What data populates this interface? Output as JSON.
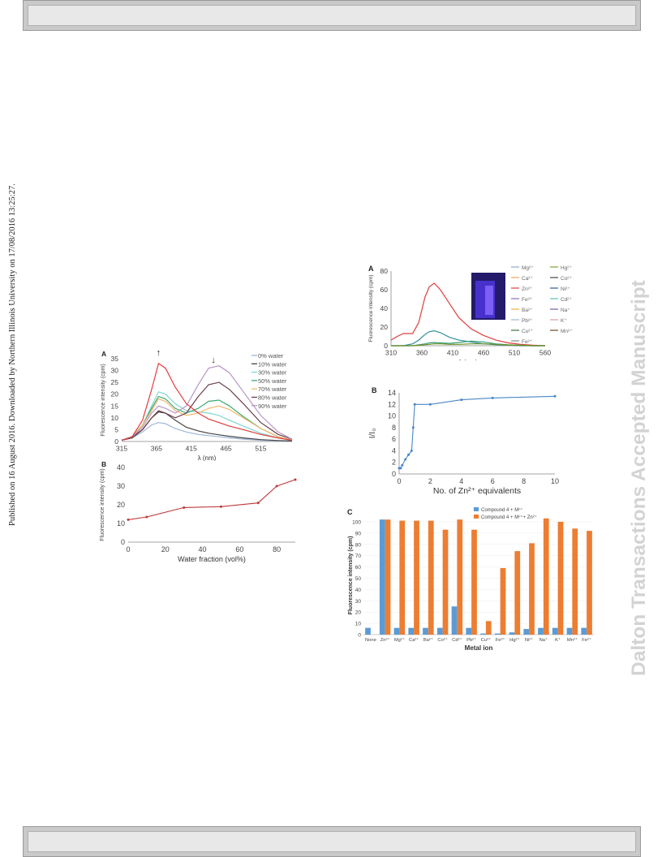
{
  "page": {
    "side_note": "Published on 16 August 2016. Downloaded by Northern Illinois University on 17/08/2016 13:25:27.",
    "watermark": "Dalton Transactions Accepted Manuscript"
  },
  "chart_data": [
    {
      "panel": "A",
      "type": "line",
      "xlabel": "λ (nm)",
      "ylabel": "Fluorescence intensity (cpm)",
      "xticks": [
        "315",
        "365",
        "415",
        "465",
        "515"
      ],
      "xlim": [
        315,
        560
      ],
      "ylim": [
        0,
        35
      ],
      "yticks": [
        "0",
        "5",
        "10",
        "15",
        "20",
        "25",
        "30",
        "35"
      ],
      "annotations": [
        "↑",
        "↓"
      ],
      "x": [
        315,
        330,
        345,
        358,
        368,
        378,
        392,
        408,
        425,
        440,
        455,
        470,
        490,
        515,
        540,
        560
      ],
      "series": [
        {
          "name": "0% water",
          "color": "#9db6d6",
          "values": [
            0.5,
            1.5,
            4,
            7,
            8,
            7.5,
            5.5,
            4,
            3,
            2.5,
            2,
            1.5,
            1,
            0.5,
            0.3,
            0.2
          ]
        },
        {
          "name": "10% water",
          "color": "#444444",
          "values": [
            0.5,
            1.5,
            5,
            10,
            12.5,
            12,
            9,
            6,
            4.5,
            3.5,
            2.8,
            2.2,
            1.5,
            0.8,
            0.4,
            0.2
          ]
        },
        {
          "name": "30% water",
          "color": "#7fd6d1",
          "values": [
            0.5,
            2,
            7,
            15,
            21,
            20,
            16,
            13,
            12.5,
            12,
            11,
            9,
            6.5,
            3.5,
            1.5,
            0.5
          ]
        },
        {
          "name": "50% water",
          "color": "#3fa86f",
          "values": [
            0.5,
            2,
            7,
            14,
            19,
            18,
            14,
            12,
            14,
            17,
            17.5,
            15,
            10.5,
            5.5,
            2,
            0.5
          ]
        },
        {
          "name": "70% water",
          "color": "#f2b96e",
          "values": [
            0.5,
            2,
            7,
            13,
            18,
            17,
            13,
            11,
            12,
            14,
            15,
            13.5,
            10,
            5.5,
            2,
            0.5
          ]
        },
        {
          "name": "80% water",
          "color": "#6a3d4a",
          "values": [
            0.5,
            2,
            5,
            10,
            13,
            12,
            10,
            12,
            19,
            24,
            25,
            22,
            16,
            8,
            3,
            1
          ]
        },
        {
          "name": "90% water",
          "color": "#b896c8",
          "values": [
            0.5,
            2,
            6,
            12,
            15,
            14,
            12,
            15,
            24,
            31,
            32,
            29,
            21,
            11,
            4,
            1
          ]
        },
        {
          "name": "",
          "color": "#e03c3c",
          "values": [
            0.5,
            2,
            9,
            22,
            33,
            31,
            23,
            16,
            12,
            9.5,
            8,
            6.5,
            5,
            3,
            1.5,
            0.5
          ]
        }
      ]
    },
    {
      "panel": "B",
      "type": "line",
      "xlabel": "Water fraction (vol%)",
      "ylabel": "Fluorescence intensity (cpm)",
      "xticks": [
        "0",
        "20",
        "40",
        "60",
        "80"
      ],
      "yticks": [
        "0",
        "10",
        "20",
        "30",
        "40"
      ],
      "xlim": [
        0,
        90
      ],
      "ylim": [
        0,
        40
      ],
      "series": [
        {
          "name": "",
          "color": "#c0393b",
          "x": [
            0,
            10,
            30,
            50,
            70,
            80,
            90
          ],
          "values": [
            12,
            13.5,
            18.5,
            19,
            21,
            30,
            33.5
          ]
        }
      ]
    },
    {
      "panel": "A",
      "type": "line",
      "xlabel": "λ (nm)",
      "ylabel": "Fluorescence intensity (cpm)",
      "xticks": [
        "310",
        "360",
        "410",
        "460",
        "510",
        "560"
      ],
      "yticks": [
        "0",
        "20",
        "40",
        "60",
        "80"
      ],
      "xlim": [
        310,
        560
      ],
      "ylim": [
        0,
        80
      ],
      "legend": [
        "Mg²⁺",
        "Hg²⁺",
        "Ca²⁺",
        "Co²⁺",
        "Zn²⁺",
        "Ni²⁺",
        "Fe³⁺",
        "Cd²⁺",
        "Ba²⁺",
        "Na⁺",
        "Pb²⁺",
        "K⁺",
        "Cu²⁺",
        "Mn²⁺",
        "Fe²⁺"
      ],
      "legend_colors": [
        "#8fa9c8",
        "#7aa337",
        "#f0a35e",
        "#444444",
        "#e03c3c",
        "#2e5e8c",
        "#8e6fb0",
        "#5fbfb8",
        "#e7b12f",
        "#7a5aa0",
        "#9db6d6",
        "#d4a0a0",
        "#3c6f3c",
        "#6b4a2a",
        "#888888"
      ],
      "x": [
        310,
        320,
        330,
        345,
        355,
        365,
        372,
        380,
        390,
        405,
        420,
        440,
        460,
        480,
        500,
        520,
        540,
        560
      ],
      "series": [
        {
          "name": "Zn²⁺",
          "color": "#e03c3c",
          "values": [
            6,
            10,
            13,
            13,
            25,
            52,
            63,
            67,
            60,
            45,
            30,
            18,
            11,
            6,
            3,
            1.5,
            0.5,
            0
          ]
        },
        {
          "name": "",
          "color": "#2f8f9d",
          "values": [
            0,
            0,
            0,
            2,
            6,
            12,
            15,
            16,
            14,
            9,
            6,
            4,
            2,
            1,
            0.5,
            0,
            0,
            0
          ]
        },
        {
          "name": "",
          "color": "#3aa07a",
          "values": [
            0,
            0,
            0,
            0,
            1,
            2,
            3,
            3.5,
            3,
            2.5,
            3.5,
            5,
            4,
            2,
            1,
            0.5,
            0,
            0
          ]
        },
        {
          "name": "",
          "color": "#6b8e23",
          "values": [
            0,
            0,
            0,
            0,
            0.5,
            1,
            1.5,
            2,
            2,
            1.5,
            1.5,
            2,
            2,
            1.5,
            0.8,
            0.3,
            0,
            0
          ]
        }
      ]
    },
    {
      "panel": "B",
      "type": "line",
      "xlabel": "No. of Zn²⁺ equivalents",
      "ylabel": "I/I₀",
      "xticks": [
        "0",
        "2",
        "4",
        "6",
        "8",
        "10"
      ],
      "yticks": [
        "0",
        "2",
        "4",
        "6",
        "8",
        "10",
        "12",
        "14"
      ],
      "xlim": [
        0,
        10
      ],
      "ylim": [
        0,
        14
      ],
      "series": [
        {
          "name": "",
          "color": "#4a86c5",
          "x": [
            0,
            0.1,
            0.2,
            0.4,
            0.6,
            0.8,
            0.9,
            1.0,
            2,
            4,
            6,
            10
          ],
          "values": [
            1,
            1,
            1.5,
            2.5,
            3.3,
            4,
            8,
            12,
            12,
            12.8,
            13.1,
            13.4
          ]
        }
      ]
    },
    {
      "panel": "C",
      "type": "bar",
      "xlabel": "Metal ion",
      "ylabel": "Fluorescence intensity (cpm)",
      "yticks": [
        "0",
        "10",
        "20",
        "30",
        "40",
        "50",
        "60",
        "70",
        "80",
        "90",
        "100"
      ],
      "ylim": [
        0,
        105
      ],
      "categories": [
        "None",
        "Zn²⁺",
        "Mg²⁺",
        "Ca²⁺",
        "Ba²⁺",
        "Co²⁺",
        "Cd²⁺",
        "Pb²⁺",
        "Cu²⁺",
        "Fe³⁺",
        "Hg²⁺",
        "Ni²⁺",
        "Na⁺",
        "K⁺",
        "Mn²⁺",
        "Fe²⁺"
      ],
      "series": [
        {
          "name": "Compound 4 + Mⁿ⁺",
          "color": "#5b9bd5",
          "values": [
            6,
            102,
            6,
            6,
            6,
            6,
            25,
            6,
            1,
            1,
            2,
            5,
            6,
            6,
            6,
            6
          ]
        },
        {
          "name": "Compound 4 + Mⁿ⁺+ Zn²⁺",
          "color": "#ed7d31",
          "values": [
            null,
            102,
            101,
            101,
            101,
            93,
            102,
            93,
            12,
            59,
            74,
            81,
            103,
            100,
            94,
            92
          ]
        }
      ]
    }
  ]
}
